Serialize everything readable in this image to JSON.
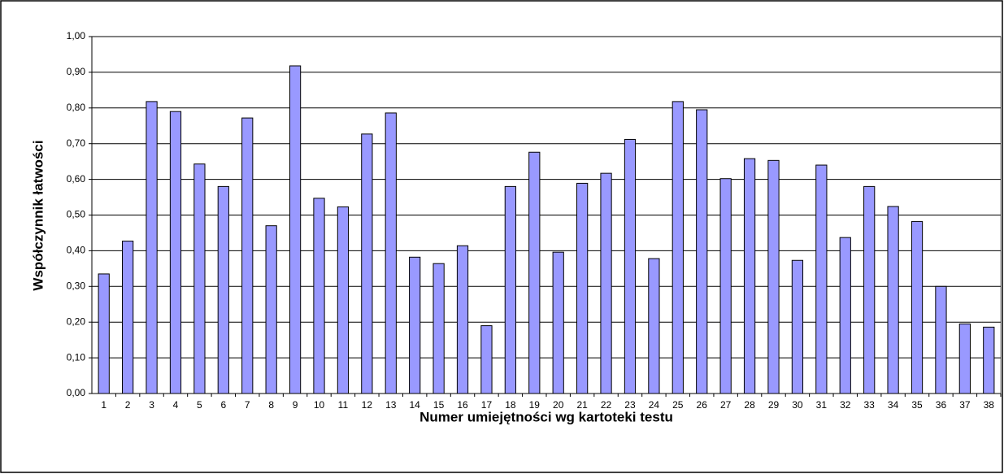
{
  "chart_data": {
    "type": "bar",
    "x_label": "Numer umiejętności wg kartoteki testu",
    "y_label": "Współczynnik łatwości",
    "categories": [
      "1",
      "2",
      "3",
      "4",
      "5",
      "6",
      "7",
      "8",
      "9",
      "10",
      "11",
      "12",
      "13",
      "14",
      "15",
      "16",
      "17",
      "18",
      "19",
      "20",
      "21",
      "22",
      "23",
      "24",
      "25",
      "26",
      "27",
      "28",
      "29",
      "30",
      "31",
      "32",
      "33",
      "34",
      "35",
      "36",
      "37",
      "38"
    ],
    "values": [
      0.335,
      0.427,
      0.818,
      0.79,
      0.643,
      0.58,
      0.772,
      0.47,
      0.918,
      0.547,
      0.523,
      0.727,
      0.786,
      0.382,
      0.364,
      0.414,
      0.19,
      0.58,
      0.676,
      0.396,
      0.589,
      0.617,
      0.712,
      0.378,
      0.818,
      0.795,
      0.602,
      0.658,
      0.653,
      0.373,
      0.64,
      0.437,
      0.58,
      0.524,
      0.482,
      0.3,
      0.195,
      0.186
    ],
    "color": "#9999ff",
    "ylim": [
      0,
      1
    ],
    "yticks": [
      {
        "value": 0,
        "label": "0,00"
      },
      {
        "value": 0.1,
        "label": "0,10"
      },
      {
        "value": 0.2,
        "label": "0,20"
      },
      {
        "value": 0.3,
        "label": "0,30"
      },
      {
        "value": 0.4,
        "label": "0,40"
      },
      {
        "value": 0.5,
        "label": "0,50"
      },
      {
        "value": 0.6,
        "label": "0,60"
      },
      {
        "value": 0.7,
        "label": "0,70"
      },
      {
        "value": 0.8,
        "label": "0,80"
      },
      {
        "value": 0.9,
        "label": "0,90"
      },
      {
        "value": 1,
        "label": "1,00"
      }
    ],
    "grid": true
  }
}
